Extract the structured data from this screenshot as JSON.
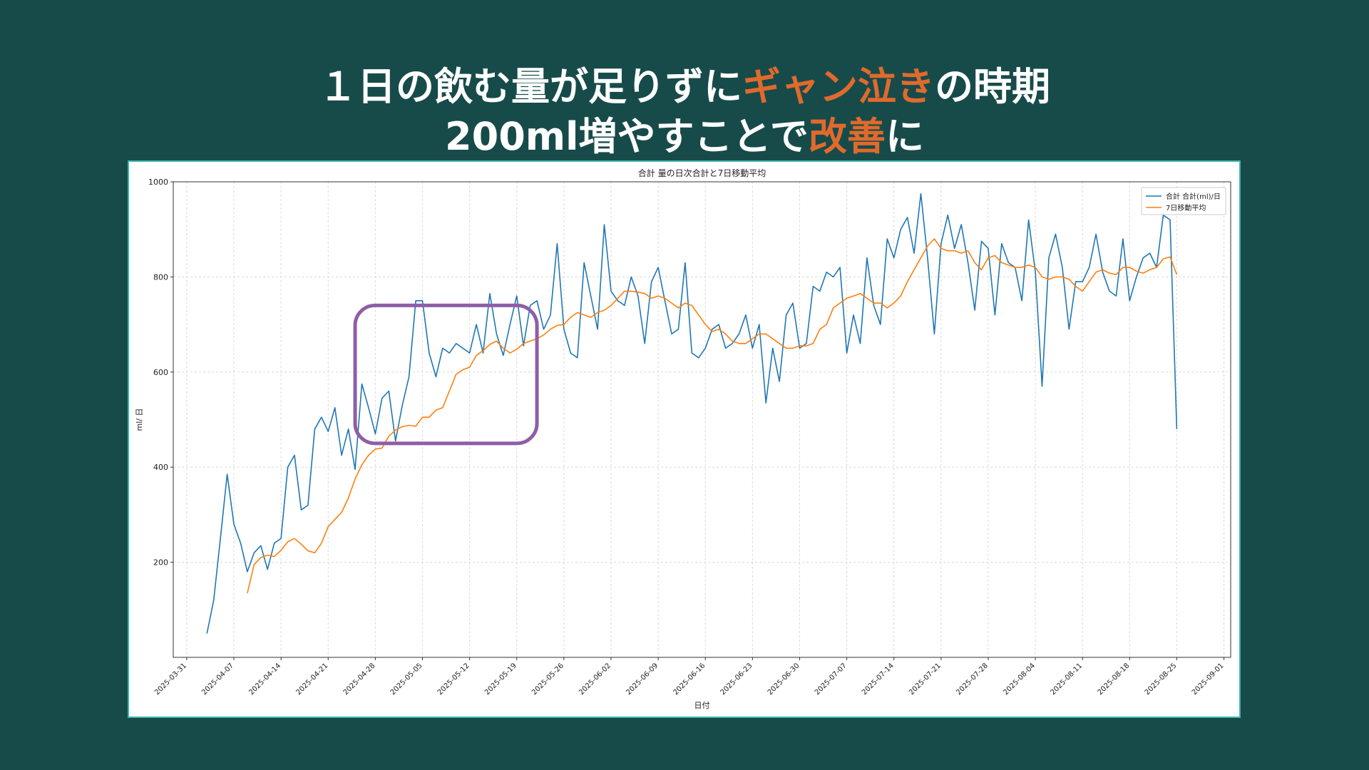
{
  "headline": {
    "line1_a": "１日の飲む量が足りずに",
    "line1_b": "ギャン泣き",
    "line1_c": "の時期",
    "line2_a": "200ml増やすことで",
    "line2_b": "改善",
    "line2_c": "に"
  },
  "colors": {
    "background": "#174b4a",
    "accent": "#e06a2c",
    "frame": "#3fb6ad",
    "series_daily": "#1f77b4",
    "series_avg": "#ff7f0e",
    "highlight": "#8e5ea8"
  },
  "chart_data": {
    "type": "line",
    "title": "合計 量の日次合計と7日移動平均",
    "xlabel": "日付",
    "ylabel": "ml/ 日",
    "ylim": [
      0,
      1000
    ],
    "xlim": [
      "2025-03-29",
      "2025-09-02"
    ],
    "yticks": [
      200,
      400,
      600,
      800,
      1000
    ],
    "xticks": [
      "2025-03-31",
      "2025-04-07",
      "2025-04-14",
      "2025-04-21",
      "2025-04-28",
      "2025-05-05",
      "2025-05-12",
      "2025-05-19",
      "2025-05-26",
      "2025-06-02",
      "2025-06-09",
      "2025-06-16",
      "2025-06-23",
      "2025-06-30",
      "2025-07-07",
      "2025-07-14",
      "2025-07-21",
      "2025-07-28",
      "2025-08-04",
      "2025-08-11",
      "2025-08-18",
      "2025-08-25",
      "2025-09-01"
    ],
    "grid": true,
    "legend_position": "top-right",
    "start_date": "2025-04-03",
    "highlight_range": {
      "from": "2025-04-25",
      "to": "2025-05-22",
      "y_from": 450,
      "y_to": 740
    },
    "series": [
      {
        "name": "合計 合計(ml)/日",
        "values": [
          50,
          120,
          250,
          385,
          280,
          240,
          180,
          220,
          235,
          185,
          240,
          250,
          400,
          425,
          310,
          320,
          480,
          505,
          475,
          525,
          425,
          480,
          395,
          575,
          525,
          470,
          545,
          560,
          455,
          530,
          590,
          750,
          750,
          640,
          590,
          650,
          640,
          660,
          650,
          640,
          700,
          640,
          765,
          680,
          635,
          700,
          760,
          655,
          740,
          750,
          690,
          720,
          870,
          690,
          640,
          630,
          830,
          760,
          690,
          910,
          770,
          750,
          740,
          800,
          760,
          660,
          790,
          820,
          750,
          680,
          690,
          830,
          640,
          630,
          650,
          690,
          700,
          650,
          660,
          680,
          720,
          650,
          700,
          535,
          650,
          580,
          720,
          745,
          650,
          660,
          780,
          770,
          810,
          800,
          820,
          640,
          720,
          660,
          840,
          740,
          700,
          880,
          840,
          900,
          925,
          850,
          975,
          840,
          680,
          870,
          930,
          860,
          910,
          830,
          730,
          875,
          860,
          720,
          870,
          830,
          820,
          750,
          920,
          810,
          570,
          840,
          890,
          820,
          690,
          790,
          790,
          820,
          890,
          810,
          770,
          760,
          880,
          750,
          800,
          840,
          850,
          820,
          930,
          920,
          480
        ]
      },
      {
        "name": "7日移動平均",
        "values": [
          null,
          null,
          null,
          null,
          null,
          null,
          135,
          195,
          210,
          215,
          212,
          225,
          243,
          250,
          238,
          224,
          220,
          240,
          275,
          290,
          305,
          335,
          375,
          405,
          425,
          438,
          440,
          465,
          478,
          485,
          488,
          486,
          505,
          505,
          520,
          525,
          560,
          595,
          605,
          610,
          635,
          645,
          658,
          665,
          650,
          640,
          648,
          660,
          665,
          670,
          678,
          690,
          698,
          700,
          715,
          725,
          720,
          715,
          725,
          730,
          740,
          755,
          770,
          770,
          768,
          765,
          755,
          760,
          755,
          745,
          735,
          745,
          740,
          720,
          700,
          685,
          690,
          680,
          665,
          660,
          660,
          670,
          680,
          680,
          670,
          660,
          650,
          650,
          655,
          655,
          660,
          690,
          700,
          735,
          745,
          755,
          760,
          765,
          755,
          745,
          745,
          735,
          745,
          760,
          790,
          815,
          840,
          865,
          880,
          860,
          855,
          855,
          850,
          855,
          830,
          815,
          840,
          845,
          830,
          825,
          820,
          820,
          825,
          820,
          800,
          795,
          800,
          800,
          795,
          780,
          770,
          790,
          810,
          815,
          808,
          805,
          820,
          820,
          812,
          808,
          815,
          820,
          838,
          842,
          805
        ]
      }
    ]
  }
}
